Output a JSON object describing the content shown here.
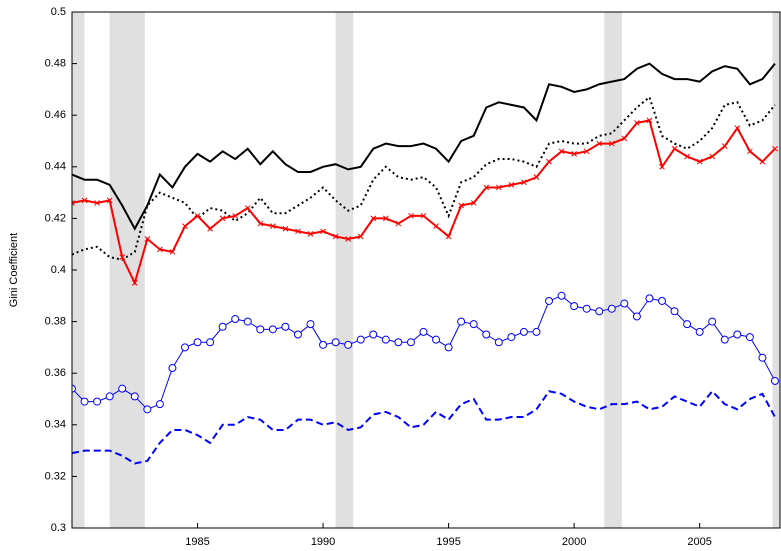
{
  "chart_data": {
    "type": "line",
    "y_label": "Gini Coefficient",
    "xlim": [
      1980,
      2008.2
    ],
    "ylim": [
      0.3,
      0.5
    ],
    "xticks": [
      1985,
      1990,
      1995,
      2000,
      2005
    ],
    "yticks": [
      0.3,
      0.32,
      0.34,
      0.36,
      0.38,
      0.4,
      0.42,
      0.44,
      0.46,
      0.48,
      0.5
    ],
    "shade_color": "#e0e0e0",
    "shaded_periods": [
      [
        1980,
        1980.5
      ],
      [
        1981.5,
        1982.9
      ],
      [
        1990.5,
        1991.2
      ],
      [
        2001.2,
        2001.9
      ],
      [
        2007.9,
        2008.2
      ]
    ],
    "x": [
      1980,
      1980.5,
      1981,
      1981.5,
      1982,
      1982.5,
      1983,
      1983.5,
      1984,
      1984.5,
      1985,
      1985.5,
      1986,
      1986.5,
      1987,
      1987.5,
      1988,
      1988.5,
      1989,
      1989.5,
      1990,
      1990.5,
      1991,
      1991.5,
      1992,
      1992.5,
      1993,
      1993.5,
      1994,
      1994.5,
      1995,
      1995.5,
      1996,
      1996.5,
      1997,
      1997.5,
      1998,
      1998.5,
      1999,
      1999.5,
      2000,
      2000.5,
      2001,
      2001.5,
      2002,
      2002.5,
      2003,
      2003.5,
      2004,
      2004.5,
      2005,
      2005.5,
      2006,
      2006.5,
      2007,
      2007.5,
      2008
    ],
    "series": [
      {
        "color": "#000000",
        "style": "solid",
        "marker": "none",
        "values": [
          0.437,
          0.435,
          0.435,
          0.433,
          0.425,
          0.416,
          0.425,
          0.437,
          0.432,
          0.44,
          0.445,
          0.442,
          0.446,
          0.443,
          0.447,
          0.441,
          0.446,
          0.441,
          0.438,
          0.438,
          0.44,
          0.441,
          0.439,
          0.44,
          0.447,
          0.449,
          0.448,
          0.448,
          0.449,
          0.447,
          0.442,
          0.45,
          0.452,
          0.463,
          0.465,
          0.464,
          0.463,
          0.458,
          0.472,
          0.471,
          0.469,
          0.47,
          0.472,
          0.473,
          0.474,
          0.478,
          0.48,
          0.476,
          0.474,
          0.474,
          0.473,
          0.477,
          0.479,
          0.478,
          0.472,
          0.474,
          0.48
        ]
      },
      {
        "color": "#000000",
        "style": "dotted",
        "marker": "none",
        "values": [
          0.406,
          0.408,
          0.409,
          0.405,
          0.404,
          0.407,
          0.425,
          0.43,
          0.428,
          0.426,
          0.42,
          0.424,
          0.423,
          0.419,
          0.422,
          0.428,
          0.422,
          0.422,
          0.425,
          0.428,
          0.432,
          0.427,
          0.423,
          0.425,
          0.435,
          0.44,
          0.436,
          0.435,
          0.436,
          0.432,
          0.421,
          0.434,
          0.436,
          0.441,
          0.443,
          0.443,
          0.442,
          0.44,
          0.449,
          0.45,
          0.449,
          0.449,
          0.452,
          0.453,
          0.458,
          0.463,
          0.467,
          0.452,
          0.449,
          0.447,
          0.45,
          0.455,
          0.464,
          0.465,
          0.456,
          0.458,
          0.464
        ]
      },
      {
        "color": "#ff0000",
        "style": "solid",
        "marker": "x",
        "values": [
          0.426,
          0.427,
          0.426,
          0.427,
          0.405,
          0.395,
          0.412,
          0.408,
          0.407,
          0.417,
          0.421,
          0.416,
          0.42,
          0.421,
          0.424,
          0.418,
          0.417,
          0.416,
          0.415,
          0.414,
          0.415,
          0.413,
          0.412,
          0.413,
          0.42,
          0.42,
          0.418,
          0.421,
          0.421,
          0.417,
          0.413,
          0.425,
          0.426,
          0.432,
          0.432,
          0.433,
          0.434,
          0.436,
          0.442,
          0.446,
          0.445,
          0.446,
          0.449,
          0.449,
          0.451,
          0.457,
          0.458,
          0.44,
          0.447,
          0.444,
          0.442,
          0.444,
          0.448,
          0.455,
          0.446,
          0.442,
          0.447
        ]
      },
      {
        "color": "#0000ff",
        "style": "solid",
        "marker": "circle",
        "values": [
          0.354,
          0.349,
          0.349,
          0.351,
          0.354,
          0.351,
          0.346,
          0.348,
          0.362,
          0.37,
          0.372,
          0.372,
          0.378,
          0.381,
          0.38,
          0.377,
          0.377,
          0.378,
          0.375,
          0.379,
          0.371,
          0.372,
          0.371,
          0.373,
          0.375,
          0.373,
          0.372,
          0.372,
          0.376,
          0.373,
          0.37,
          0.38,
          0.379,
          0.375,
          0.372,
          0.374,
          0.376,
          0.376,
          0.388,
          0.39,
          0.386,
          0.385,
          0.384,
          0.385,
          0.387,
          0.382,
          0.389,
          0.388,
          0.384,
          0.379,
          0.376,
          0.38,
          0.373,
          0.375,
          0.374,
          0.366,
          0.357
        ]
      },
      {
        "color": "#0000ff",
        "style": "dashed",
        "marker": "none",
        "values": [
          0.329,
          0.33,
          0.33,
          0.33,
          0.328,
          0.325,
          0.326,
          0.333,
          0.338,
          0.338,
          0.336,
          0.333,
          0.34,
          0.34,
          0.343,
          0.342,
          0.338,
          0.338,
          0.342,
          0.342,
          0.34,
          0.341,
          0.338,
          0.339,
          0.344,
          0.345,
          0.343,
          0.339,
          0.34,
          0.345,
          0.342,
          0.348,
          0.35,
          0.342,
          0.342,
          0.343,
          0.343,
          0.346,
          0.353,
          0.352,
          0.349,
          0.347,
          0.346,
          0.348,
          0.348,
          0.349,
          0.346,
          0.347,
          0.351,
          0.349,
          0.347,
          0.353,
          0.348,
          0.346,
          0.35,
          0.352,
          0.343
        ]
      }
    ]
  }
}
